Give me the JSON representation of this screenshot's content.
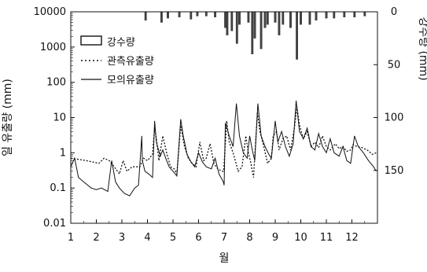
{
  "chart_data": {
    "type": "line",
    "title": "",
    "xlabel": "월",
    "ylabel": "일 유출량 (mm)",
    "y2label": "강수량 (mm)",
    "y_scale": "log",
    "ylim": [
      0.01,
      10000
    ],
    "yticks": [
      0.01,
      0.1,
      1,
      10,
      100,
      1000,
      10000
    ],
    "y2_inverted": true,
    "y2lim": [
      0,
      200
    ],
    "y2ticks": [
      0,
      50,
      100,
      150
    ],
    "xlim": [
      1,
      13
    ],
    "xticks": [
      1,
      2,
      3,
      4,
      5,
      6,
      7,
      8,
      9,
      10,
      11,
      12
    ],
    "grid": false,
    "legend_position": "top-left",
    "series": [
      {
        "name": "강수량",
        "kind": "bar",
        "axis": "right",
        "points": [
          [
            3.93,
            8
          ],
          [
            4.55,
            10
          ],
          [
            4.8,
            6
          ],
          [
            5.25,
            5
          ],
          [
            5.7,
            7
          ],
          [
            5.95,
            4
          ],
          [
            6.3,
            4
          ],
          [
            6.65,
            5
          ],
          [
            7.05,
            15
          ],
          [
            7.12,
            22
          ],
          [
            7.3,
            18
          ],
          [
            7.5,
            30
          ],
          [
            7.6,
            12
          ],
          [
            7.95,
            10
          ],
          [
            8.1,
            40
          ],
          [
            8.2,
            25
          ],
          [
            8.45,
            35
          ],
          [
            8.6,
            15
          ],
          [
            8.7,
            12
          ],
          [
            9.0,
            10
          ],
          [
            9.15,
            22
          ],
          [
            9.3,
            12
          ],
          [
            9.6,
            15
          ],
          [
            9.85,
            45
          ],
          [
            10.0,
            12
          ],
          [
            10.35,
            12
          ],
          [
            10.6,
            8
          ],
          [
            11.0,
            6
          ],
          [
            11.3,
            6
          ],
          [
            11.7,
            5
          ],
          [
            12.1,
            5
          ],
          [
            12.5,
            4
          ]
        ]
      },
      {
        "name": "관측유출량",
        "kind": "dotted",
        "axis": "left",
        "points": [
          [
            1,
            0.7
          ],
          [
            1.3,
            0.65
          ],
          [
            1.6,
            0.6
          ],
          [
            1.85,
            0.55
          ],
          [
            2.1,
            0.5
          ],
          [
            2.3,
            0.7
          ],
          [
            2.5,
            0.6
          ],
          [
            2.7,
            0.4
          ],
          [
            2.9,
            0.25
          ],
          [
            3.05,
            0.6
          ],
          [
            3.2,
            0.3
          ],
          [
            3.4,
            0.4
          ],
          [
            3.7,
            0.4
          ],
          [
            3.85,
            0.7
          ],
          [
            4.0,
            0.6
          ],
          [
            4.2,
            0.9
          ],
          [
            4.28,
            5
          ],
          [
            4.35,
            2.5
          ],
          [
            4.45,
            0.6
          ],
          [
            4.6,
            3
          ],
          [
            4.75,
            1
          ],
          [
            4.9,
            0.4
          ],
          [
            5.05,
            0.35
          ],
          [
            5.15,
            0.25
          ],
          [
            5.3,
            6
          ],
          [
            5.45,
            1.5
          ],
          [
            5.6,
            0.7
          ],
          [
            5.75,
            0.5
          ],
          [
            5.9,
            0.4
          ],
          [
            6.05,
            2
          ],
          [
            6.2,
            0.6
          ],
          [
            6.3,
            0.7
          ],
          [
            6.45,
            1.8
          ],
          [
            6.6,
            0.5
          ],
          [
            6.75,
            0.35
          ],
          [
            6.9,
            0.3
          ],
          [
            6.98,
            0.3
          ],
          [
            7.1,
            8
          ],
          [
            7.2,
            2
          ],
          [
            7.35,
            1
          ],
          [
            7.55,
            0.3
          ],
          [
            7.7,
            0.4
          ],
          [
            7.85,
            3
          ],
          [
            7.95,
            1
          ],
          [
            8.05,
            0.5
          ],
          [
            8.15,
            0.2
          ],
          [
            8.3,
            14
          ],
          [
            8.4,
            4
          ],
          [
            8.55,
            1.5
          ],
          [
            8.7,
            0.5
          ],
          [
            8.85,
            0.7
          ],
          [
            8.92,
            3
          ],
          [
            9.05,
            4
          ],
          [
            9.15,
            1.2
          ],
          [
            9.3,
            2.5
          ],
          [
            9.45,
            3
          ],
          [
            9.6,
            1.2
          ],
          [
            9.75,
            5
          ],
          [
            9.85,
            20
          ],
          [
            9.95,
            6
          ],
          [
            10.1,
            2.5
          ],
          [
            10.25,
            4
          ],
          [
            10.4,
            1.5
          ],
          [
            10.55,
            2
          ],
          [
            10.7,
            1.4
          ],
          [
            10.85,
            3
          ],
          [
            11.0,
            1.5
          ],
          [
            11.15,
            1.2
          ],
          [
            11.35,
            1.8
          ],
          [
            11.5,
            1.3
          ],
          [
            11.65,
            1.5
          ],
          [
            11.8,
            1.1
          ],
          [
            11.95,
            1.2
          ],
          [
            12.05,
            1.7
          ],
          [
            12.2,
            1.5
          ],
          [
            12.4,
            1.4
          ],
          [
            12.6,
            1.2
          ],
          [
            12.8,
            0.9
          ],
          [
            12.95,
            1.0
          ]
        ]
      },
      {
        "name": "모의유출량",
        "kind": "line",
        "axis": "left",
        "points": [
          [
            1,
            0.4
          ],
          [
            1.15,
            0.7
          ],
          [
            1.3,
            0.2
          ],
          [
            1.5,
            0.15
          ],
          [
            1.8,
            0.1
          ],
          [
            2.0,
            0.09
          ],
          [
            2.2,
            0.1
          ],
          [
            2.45,
            0.08
          ],
          [
            2.6,
            0.6
          ],
          [
            2.75,
            0.15
          ],
          [
            2.9,
            0.1
          ],
          [
            3.1,
            0.07
          ],
          [
            3.3,
            0.06
          ],
          [
            3.5,
            0.1
          ],
          [
            3.65,
            0.12
          ],
          [
            3.78,
            3
          ],
          [
            3.8,
            0.6
          ],
          [
            3.9,
            0.3
          ],
          [
            4.05,
            0.25
          ],
          [
            4.2,
            0.2
          ],
          [
            4.28,
            8
          ],
          [
            4.35,
            2
          ],
          [
            4.5,
            0.8
          ],
          [
            4.6,
            1.2
          ],
          [
            4.75,
            0.6
          ],
          [
            4.85,
            0.4
          ],
          [
            5.0,
            0.3
          ],
          [
            5.15,
            0.22
          ],
          [
            5.3,
            9
          ],
          [
            5.4,
            3
          ],
          [
            5.55,
            0.9
          ],
          [
            5.7,
            0.55
          ],
          [
            5.85,
            0.4
          ],
          [
            6.0,
            1
          ],
          [
            6.15,
            0.55
          ],
          [
            6.3,
            0.4
          ],
          [
            6.5,
            0.35
          ],
          [
            6.65,
            0.7
          ],
          [
            6.8,
            0.25
          ],
          [
            6.97,
            0.15
          ],
          [
            7.0,
            0.12
          ],
          [
            7.05,
            7
          ],
          [
            7.2,
            3
          ],
          [
            7.35,
            1.5
          ],
          [
            7.48,
            25
          ],
          [
            7.6,
            3
          ],
          [
            7.75,
            1
          ],
          [
            7.9,
            0.7
          ],
          [
            8.0,
            3
          ],
          [
            8.1,
            1.2
          ],
          [
            8.2,
            0.6
          ],
          [
            8.32,
            25
          ],
          [
            8.45,
            3
          ],
          [
            8.6,
            1.5
          ],
          [
            8.75,
            0.9
          ],
          [
            8.85,
            0.7
          ],
          [
            9.0,
            8
          ],
          [
            9.1,
            2
          ],
          [
            9.25,
            4
          ],
          [
            9.4,
            1.5
          ],
          [
            9.55,
            0.8
          ],
          [
            9.7,
            1.8
          ],
          [
            9.82,
            30
          ],
          [
            9.95,
            4
          ],
          [
            10.1,
            2.5
          ],
          [
            10.25,
            5
          ],
          [
            10.4,
            1.5
          ],
          [
            10.55,
            1.2
          ],
          [
            10.7,
            3.5
          ],
          [
            10.85,
            1.5
          ],
          [
            11.0,
            1
          ],
          [
            11.15,
            2.5
          ],
          [
            11.3,
            1
          ],
          [
            11.5,
            0.8
          ],
          [
            11.65,
            1.5
          ],
          [
            11.8,
            0.6
          ],
          [
            11.95,
            0.5
          ],
          [
            12.1,
            3
          ],
          [
            12.25,
            1.5
          ],
          [
            12.45,
            1
          ],
          [
            12.65,
            0.6
          ],
          [
            12.85,
            0.4
          ],
          [
            12.95,
            0.3
          ]
        ]
      }
    ]
  }
}
